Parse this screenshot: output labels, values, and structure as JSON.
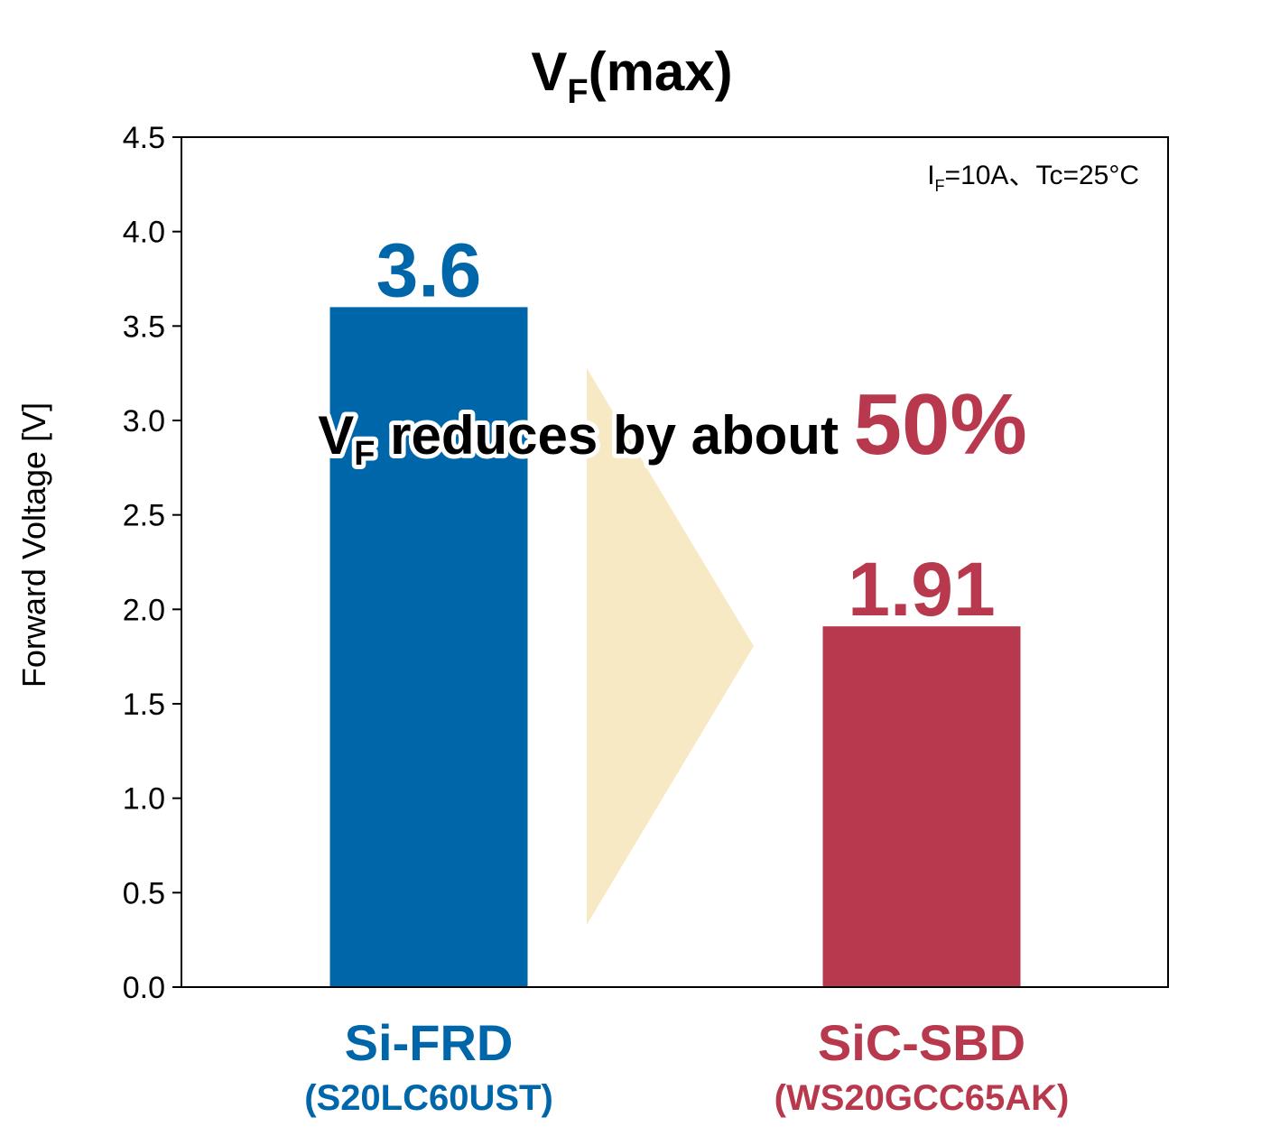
{
  "chart_data": {
    "type": "bar",
    "title": {
      "main": "V",
      "sub": "F",
      "rest": "(max)"
    },
    "ylabel": "Forward Voltage [V]",
    "ylim": [
      0,
      4.5
    ],
    "yticks": [
      "0.0",
      "0.5",
      "1.0",
      "1.5",
      "2.0",
      "2.5",
      "3.0",
      "3.5",
      "4.0",
      "4.5"
    ],
    "condition": {
      "i": "I",
      "sub": "F",
      "rest": "=10A、Tc=25°C"
    },
    "categories": [
      "Si-FRD",
      "SiC-SBD"
    ],
    "part_numbers": [
      "(S20LC60UST)",
      "(WS20GCC65AK)"
    ],
    "values": [
      3.6,
      1.91
    ],
    "value_labels": [
      "3.6",
      "1.91"
    ],
    "colors": [
      "#0066aa",
      "#b8394d"
    ],
    "arrow_color": "#f7e9c3",
    "annotation": {
      "v": "V",
      "sub": "F",
      "text": " reduces by about ",
      "percent": "50%"
    },
    "grid": false
  }
}
